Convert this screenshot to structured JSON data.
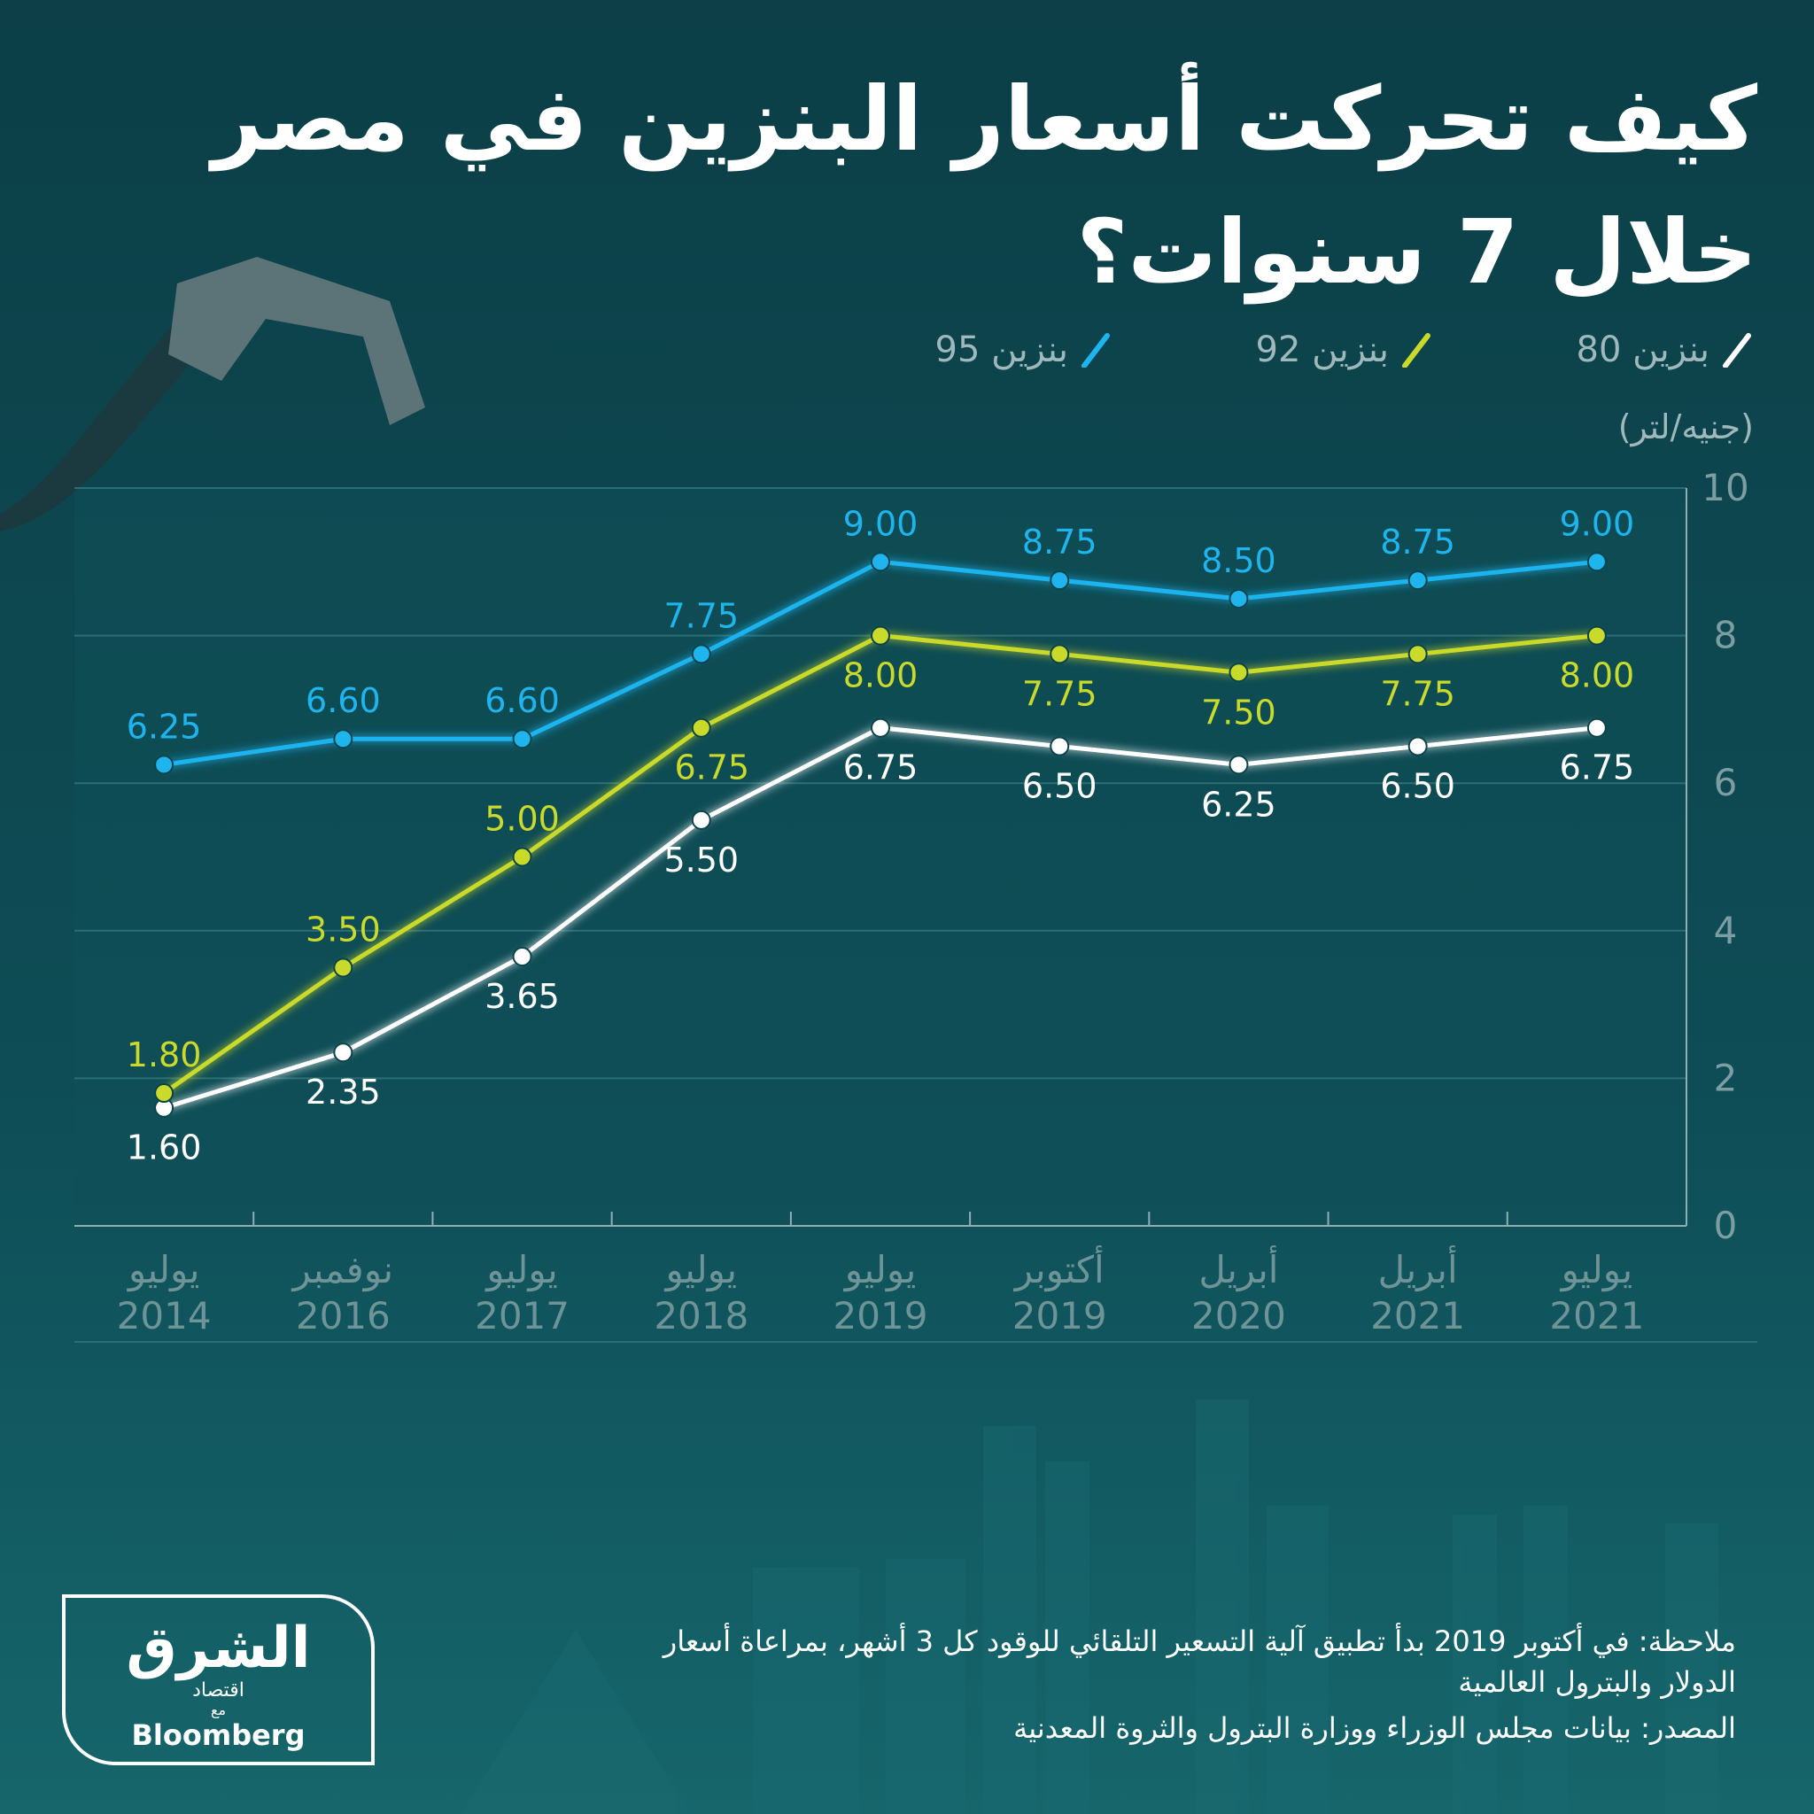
{
  "header": {
    "title": [
      "كيف تحركت أسعار البنزين في مصر",
      "خلال 7 سنوات؟"
    ]
  },
  "chart_data": {
    "type": "line",
    "unit_label": "(جنيه/لتر)",
    "categories": [
      "يوليو 2014",
      "نوفمبر 2016",
      "يوليو 2017",
      "يوليو 2018",
      "يوليو 2019",
      "أكتوبر 2019",
      "أبريل 2020",
      "أبريل 2021",
      "يوليو 2021"
    ],
    "series": [
      {
        "name": "بنزين 80",
        "color": "#ffffff",
        "values": [
          1.6,
          2.35,
          3.65,
          5.5,
          6.75,
          6.5,
          6.25,
          6.5,
          6.75
        ],
        "value_labels": [
          "1.60",
          "2.35",
          "3.65",
          "5.50",
          "6.75",
          "6.50",
          "6.25",
          "6.50",
          "6.75"
        ]
      },
      {
        "name": "بنزين 92",
        "color": "#c9da2b",
        "values": [
          1.8,
          3.5,
          5.0,
          6.75,
          8.0,
          7.75,
          7.5,
          7.75,
          8.0
        ],
        "value_labels": [
          "1.80",
          "3.50",
          "5.00",
          "6.75",
          "8.00",
          "7.75",
          "7.50",
          "7.75",
          "8.00"
        ]
      },
      {
        "name": "بنزين 95",
        "color": "#1eb4ee",
        "values": [
          6.25,
          6.6,
          6.6,
          7.75,
          9.0,
          8.75,
          8.5,
          8.75,
          9.0
        ],
        "value_labels": [
          "6.25",
          "6.60",
          "6.60",
          "7.75",
          "9.00",
          "8.75",
          "8.50",
          "8.75",
          "9.00"
        ]
      }
    ],
    "ylim": [
      0,
      10
    ],
    "yticks": [
      0,
      2,
      4,
      6,
      8,
      10
    ],
    "grid": true
  },
  "footer": {
    "note": "ملاحظة: في أكتوبر 2019 بدأ تطبيق آلية التسعير التلقائي للوقود كل 3 أشهر، بمراعاة أسعار الدولار والبترول العالمية",
    "source": "المصدر: بيانات مجلس الوزراء ووزارة البترول والثروة المعدنية"
  },
  "logo": {
    "name": "الشرق",
    "sub": "اقتصاد",
    "with": "مع",
    "partner": "Bloomberg"
  }
}
